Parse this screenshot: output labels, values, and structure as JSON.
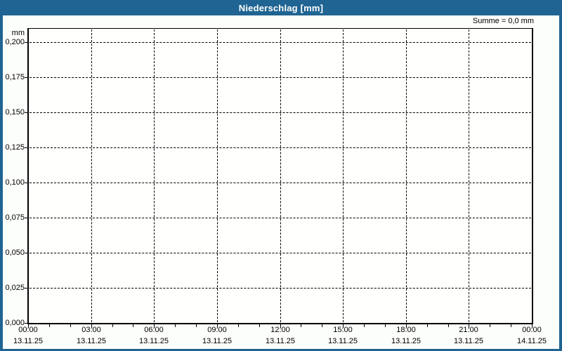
{
  "window": {
    "title": "Niederschlag [mm]"
  },
  "summary": {
    "label": "Summe = 0,0 mm"
  },
  "colors": {
    "frame_blue": "#1f6492",
    "page_background": "#fcfefb",
    "plot_background": "#fffffe",
    "grid": "#000000",
    "title_text": "#ffffff",
    "label_text": "#000000"
  },
  "chart_data": {
    "type": "line",
    "title": "Niederschlag [mm]",
    "subtitle": "",
    "ylabel": "mm",
    "xlabel": "",
    "ylim": [
      0.0,
      0.21
    ],
    "grid": true,
    "y_ticks": [
      {
        "label": "0,200",
        "value": 0.2
      },
      {
        "label": "0,175",
        "value": 0.175
      },
      {
        "label": "0,150",
        "value": 0.15
      },
      {
        "label": "0,125",
        "value": 0.125
      },
      {
        "label": "0,100",
        "value": 0.1
      },
      {
        "label": "0,075",
        "value": 0.075
      },
      {
        "label": "0,050",
        "value": 0.05
      },
      {
        "label": "0,025",
        "value": 0.025
      },
      {
        "label": "0,000",
        "value": 0.0
      }
    ],
    "x_ticks": [
      {
        "time": "00:00",
        "date": "13.11.25"
      },
      {
        "time": "03:00",
        "date": "13.11.25"
      },
      {
        "time": "06:00",
        "date": "13.11.25"
      },
      {
        "time": "09:00",
        "date": "13.11.25"
      },
      {
        "time": "12:00",
        "date": "13.11.25"
      },
      {
        "time": "15:00",
        "date": "13.11.25"
      },
      {
        "time": "18:00",
        "date": "13.11.25"
      },
      {
        "time": "21:00",
        "date": "13.11.25"
      },
      {
        "time": "00:00",
        "date": "14.11.25"
      }
    ],
    "x_minor_ticks_per_major": 3,
    "series": [
      {
        "name": "Niederschlag",
        "values": [],
        "sum_label": "Summe = 0,0 mm",
        "sum_mm": 0.0
      }
    ],
    "annotations": [
      "Summe = 0,0 mm"
    ],
    "legend_position": "none"
  }
}
